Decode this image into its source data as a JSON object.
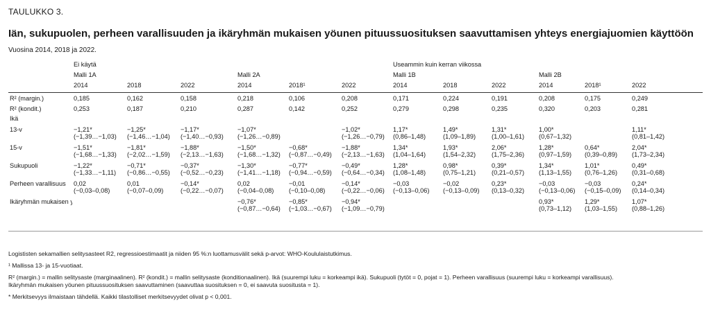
{
  "header": {
    "label": "TAULUKKO 3.",
    "title": "Iän, sukupuolen, perheen varallisuuden ja ikäryhmän mukaisen yöunen pituussuosituksen saavuttamisen yhteys energiajuomien käyttöön",
    "subtitle": "Vuosina 2014, 2018 ja 2022."
  },
  "groups": [
    "Ei käytä",
    "Useammin kuin kerran viikossa"
  ],
  "models": [
    "Malli 1A",
    "Malli 2A",
    "Malli 1B",
    "Malli 2B"
  ],
  "years": [
    "2014",
    "2018",
    "2022",
    "2014",
    "2018¹",
    "2022",
    "2014",
    "2018",
    "2022",
    "2014",
    "2018¹",
    "2022"
  ],
  "rows": [
    {
      "label": "R² (margin.)",
      "cells": [
        [
          "0,185",
          ""
        ],
        [
          "0,162",
          ""
        ],
        [
          "0,158",
          ""
        ],
        [
          "0,218",
          ""
        ],
        [
          "0,106",
          ""
        ],
        [
          "0,208",
          ""
        ],
        [
          "0,171",
          ""
        ],
        [
          "0,224",
          ""
        ],
        [
          "0,191",
          ""
        ],
        [
          "0,208",
          ""
        ],
        [
          "0,175",
          ""
        ],
        [
          "0,249",
          ""
        ]
      ]
    },
    {
      "label": "R² (kondit.)",
      "cells": [
        [
          "0,253",
          ""
        ],
        [
          "0,187",
          ""
        ],
        [
          "0,210",
          ""
        ],
        [
          "0,287",
          ""
        ],
        [
          "0,142",
          ""
        ],
        [
          "0,252",
          ""
        ],
        [
          "0,279",
          ""
        ],
        [
          "0,298",
          ""
        ],
        [
          "0,235",
          ""
        ],
        [
          "0,320",
          ""
        ],
        [
          "0,203",
          ""
        ],
        [
          "0,281",
          ""
        ]
      ]
    },
    {
      "label": "Ikä",
      "section": true
    },
    {
      "label": "13-v",
      "cells": [
        [
          "−1,21*",
          "(−1,39…−1,03)"
        ],
        [
          "−1,25*",
          "(−1,46…−1,04)"
        ],
        [
          "−1,17*",
          "(−1,40…−0,93)"
        ],
        [
          "−1,07*",
          "(−1,26…−0,89)"
        ],
        [
          "",
          ""
        ],
        [
          "−1,02*",
          "(−1,26…−0,79)"
        ],
        [
          "1,17*",
          "(0,86–1,48)"
        ],
        [
          "1,49*",
          "(1,09–1,89)"
        ],
        [
          "1,31*",
          "(1,00–1,61)"
        ],
        [
          "1,00*",
          "(0,67–1,32)"
        ],
        [
          "",
          ""
        ],
        [
          "1,11*",
          "(0,81–1,42)"
        ]
      ]
    },
    {
      "label": "15-v",
      "cells": [
        [
          "−1,51*",
          "(−1,68…−1,33)"
        ],
        [
          "−1,81*",
          "(−2,02…−1,59)"
        ],
        [
          "−1,88*",
          "(−2,13…−1,63)"
        ],
        [
          "−1,50*",
          "(−1,68…−1,32)"
        ],
        [
          "−0,68*",
          "(−0,87…−0,49)"
        ],
        [
          "−1,88*",
          "(−2,13…−1,63)"
        ],
        [
          "1,34*",
          "(1,04–1,64)"
        ],
        [
          "1,93*",
          "(1,54–2,32)"
        ],
        [
          "2,06*",
          "(1,75–2,36)"
        ],
        [
          "1,28*",
          "(0,97–1,59)"
        ],
        [
          "0,64*",
          "(0,39–0,89)"
        ],
        [
          "2,04*",
          "(1,73–2,34)"
        ]
      ]
    },
    {
      "label": "Sukupuoli",
      "cells": [
        [
          "−1,22*",
          "(−1,33…−1,11)"
        ],
        [
          "−0,71*",
          "(−0,86…−0,55)"
        ],
        [
          "−0,37*",
          "(−0,52…−0,23)"
        ],
        [
          "−1,30*",
          "(−1,41…−1,18)"
        ],
        [
          "−0,77*",
          "(−0,94…−0,59)"
        ],
        [
          "−0,49*",
          "(−0,64…−0,34)"
        ],
        [
          "1,28*",
          "(1,08–1,48)"
        ],
        [
          "0,98*",
          "(0,75–1,21)"
        ],
        [
          "0,39*",
          "(0,21–0,57)"
        ],
        [
          "1,34*",
          "(1,13–1,55)"
        ],
        [
          "1,01*",
          "(0,76–1,26)"
        ],
        [
          "0,49*",
          "(0,31–0,68)"
        ]
      ]
    },
    {
      "label": "Perheen varallisuus",
      "cells": [
        [
          "0,02",
          "(−0,03–0,08)"
        ],
        [
          "0,01",
          "(−0,07–0,09)"
        ],
        [
          "−0,14*",
          "(−0,22…−0,07)"
        ],
        [
          "0,02",
          "(−0,04–0,08)"
        ],
        [
          "−0,01",
          "(−0,10–0,08)"
        ],
        [
          "−0,14*",
          "(−0,22…−0,06)"
        ],
        [
          "−0,03",
          "(−0,13–0,06)"
        ],
        [
          "−0,02",
          "(−0,13–0,09)"
        ],
        [
          "0,23*",
          "(0,13–0,32)"
        ],
        [
          "−0,03",
          "(−0,13–0,06)"
        ],
        [
          "−0,03",
          "(−0,15–0,09)"
        ],
        [
          "0,24*",
          "(0,14–0,34)"
        ]
      ]
    },
    {
      "label": "Ikäryhmän mukaisen yöunen pituussuosituksen saavuttaminen",
      "cells": [
        [
          "",
          ""
        ],
        [
          "",
          ""
        ],
        [
          "",
          ""
        ],
        [
          "−0,76*",
          "(−0,87…−0,64)"
        ],
        [
          "−0,85*",
          "(−1,03…−0,67)"
        ],
        [
          "−0,94*",
          "(−1,09…−0,79)"
        ],
        [
          "",
          ""
        ],
        [
          "",
          ""
        ],
        [
          "",
          ""
        ],
        [
          "0,93*",
          "(0,73–1,12)"
        ],
        [
          "1,29*",
          "(1,03–1,55)"
        ],
        [
          "1,07*",
          "(0,88–1,26)"
        ]
      ]
    }
  ],
  "footnotes": {
    "f1": "Logististen sekamallien selitysasteet R2, regressioestimaatit ja niiden 95 %:n luottamusvälit sekä p-arvot: WHO-Koululaistutkimus.",
    "f2": "¹ Mallissa 13- ja 15-vuotiaat.",
    "f3a": "R² (margin.) = mallin selitysaste (marginaalinen). R² (kondit.) = mallin selitysaste (konditionaalinen). Ikä (suurempi luku = korkeampi ikä). Sukupuoli (tytöt = 0, pojat = 1). Perheen varallisuus (suurempi luku = korkeampi varallisuus).",
    "f3b": "Ikäryhmän mukaisen yöunen pituussuosituksen saavuttaminen (saavuttaa suosituksen = 0, ei saavuta suositusta = 1).",
    "f4": "* Merkitsevyys ilmaistaan tähdellä. Kaikki tilastolliset merkitsevyydet olivat p < 0,001."
  }
}
